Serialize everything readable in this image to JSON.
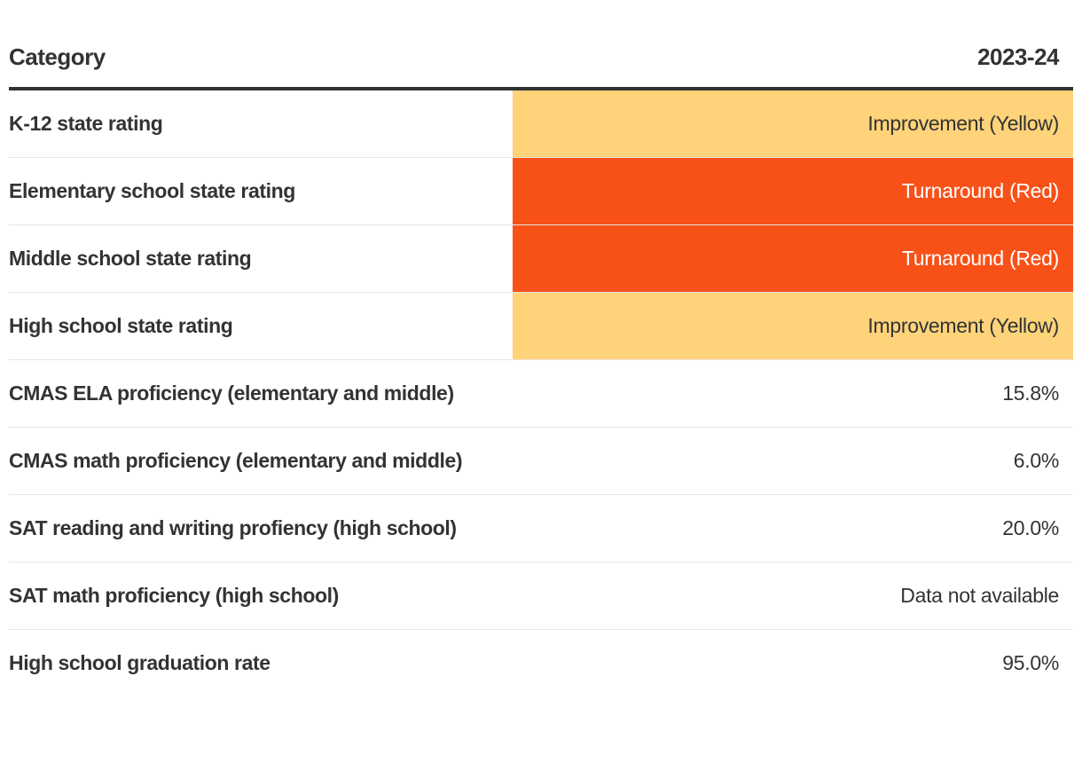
{
  "table": {
    "headers": {
      "category": "Category",
      "year": "2023-24"
    },
    "rows": [
      {
        "label": "K-12 state rating",
        "value": "Improvement (Yellow)",
        "bg": "#fed37a",
        "fg": "#333333"
      },
      {
        "label": "Elementary school state rating",
        "value": "Turnaround (Red)",
        "bg": "#f85118",
        "fg": "#ffffff"
      },
      {
        "label": "Middle school state rating",
        "value": "Turnaround (Red)",
        "bg": "#f85118",
        "fg": "#ffffff"
      },
      {
        "label": "High school state rating",
        "value": "Improvement (Yellow)",
        "bg": "#fed37a",
        "fg": "#333333"
      },
      {
        "label": "CMAS ELA proficiency (elementary and middle)",
        "value": "15.8%"
      },
      {
        "label": "CMAS math proficiency (elementary and middle)",
        "value": "6.0%"
      },
      {
        "label": "SAT reading and writing profiency (high school)",
        "value": "20.0%"
      },
      {
        "label": "SAT math proficiency (high school)",
        "value": "Data not available"
      },
      {
        "label": "High school graduation rate",
        "value": "95.0%"
      }
    ]
  }
}
